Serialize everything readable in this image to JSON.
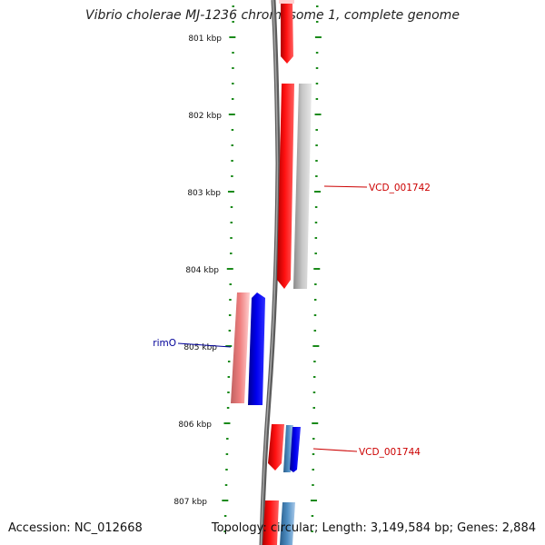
{
  "title": "Vibrio cholerae MJ-1236 chromosome 1, complete genome",
  "footer": {
    "accession": "Accession: NC_012668",
    "summary": "Topology: circular; Length: 3,149,584 bp; Genes: 2,884"
  },
  "ruler": {
    "unit": "kbp",
    "ticks": [
      "801 kbp",
      "802 kbp",
      "803 kbp",
      "804 kbp",
      "805 kbp",
      "806 kbp",
      "807 kbp"
    ],
    "tick_color": "#1a8a1a"
  },
  "features": [
    {
      "kind": "gene",
      "strand": "+",
      "ring": "outer",
      "color": "#ff0000",
      "label": ""
    },
    {
      "kind": "gene",
      "strand": "+",
      "ring": "outer",
      "color": "#ff0000",
      "label": ""
    },
    {
      "kind": "gene",
      "strand": "+",
      "ring": "outer2",
      "color": "#b0b0b0",
      "label": "VCD_001742",
      "label_color": "#cc0000"
    },
    {
      "kind": "gene",
      "strand": "-",
      "ring": "inner2",
      "color": "#f08080",
      "label": ""
    },
    {
      "kind": "gene",
      "strand": "-",
      "ring": "inner",
      "color": "#0000ee",
      "label": "rimO",
      "label_color": "#000099"
    },
    {
      "kind": "gene",
      "strand": "+",
      "ring": "outer",
      "color": "#ff0000",
      "label": ""
    },
    {
      "kind": "gene",
      "strand": "+",
      "ring": "outer2",
      "color": "#4682b4",
      "label": ""
    },
    {
      "kind": "gene",
      "strand": "+",
      "ring": "outer3",
      "color": "#0000ee",
      "label": "VCD_001744",
      "label_color": "#cc0000"
    },
    {
      "kind": "gene",
      "strand": "+",
      "ring": "outer",
      "color": "#ff0000",
      "label": ""
    },
    {
      "kind": "gene",
      "strand": "+",
      "ring": "outer2",
      "color": "#4682b4",
      "label": ""
    }
  ],
  "colors": {
    "backbone": "#7a7a7a",
    "forward": "#ff0000",
    "reverse": "#0000ee",
    "cds_grey": "#b0b0b0",
    "steel": "#4682b4",
    "tick": "#1a8a1a"
  }
}
